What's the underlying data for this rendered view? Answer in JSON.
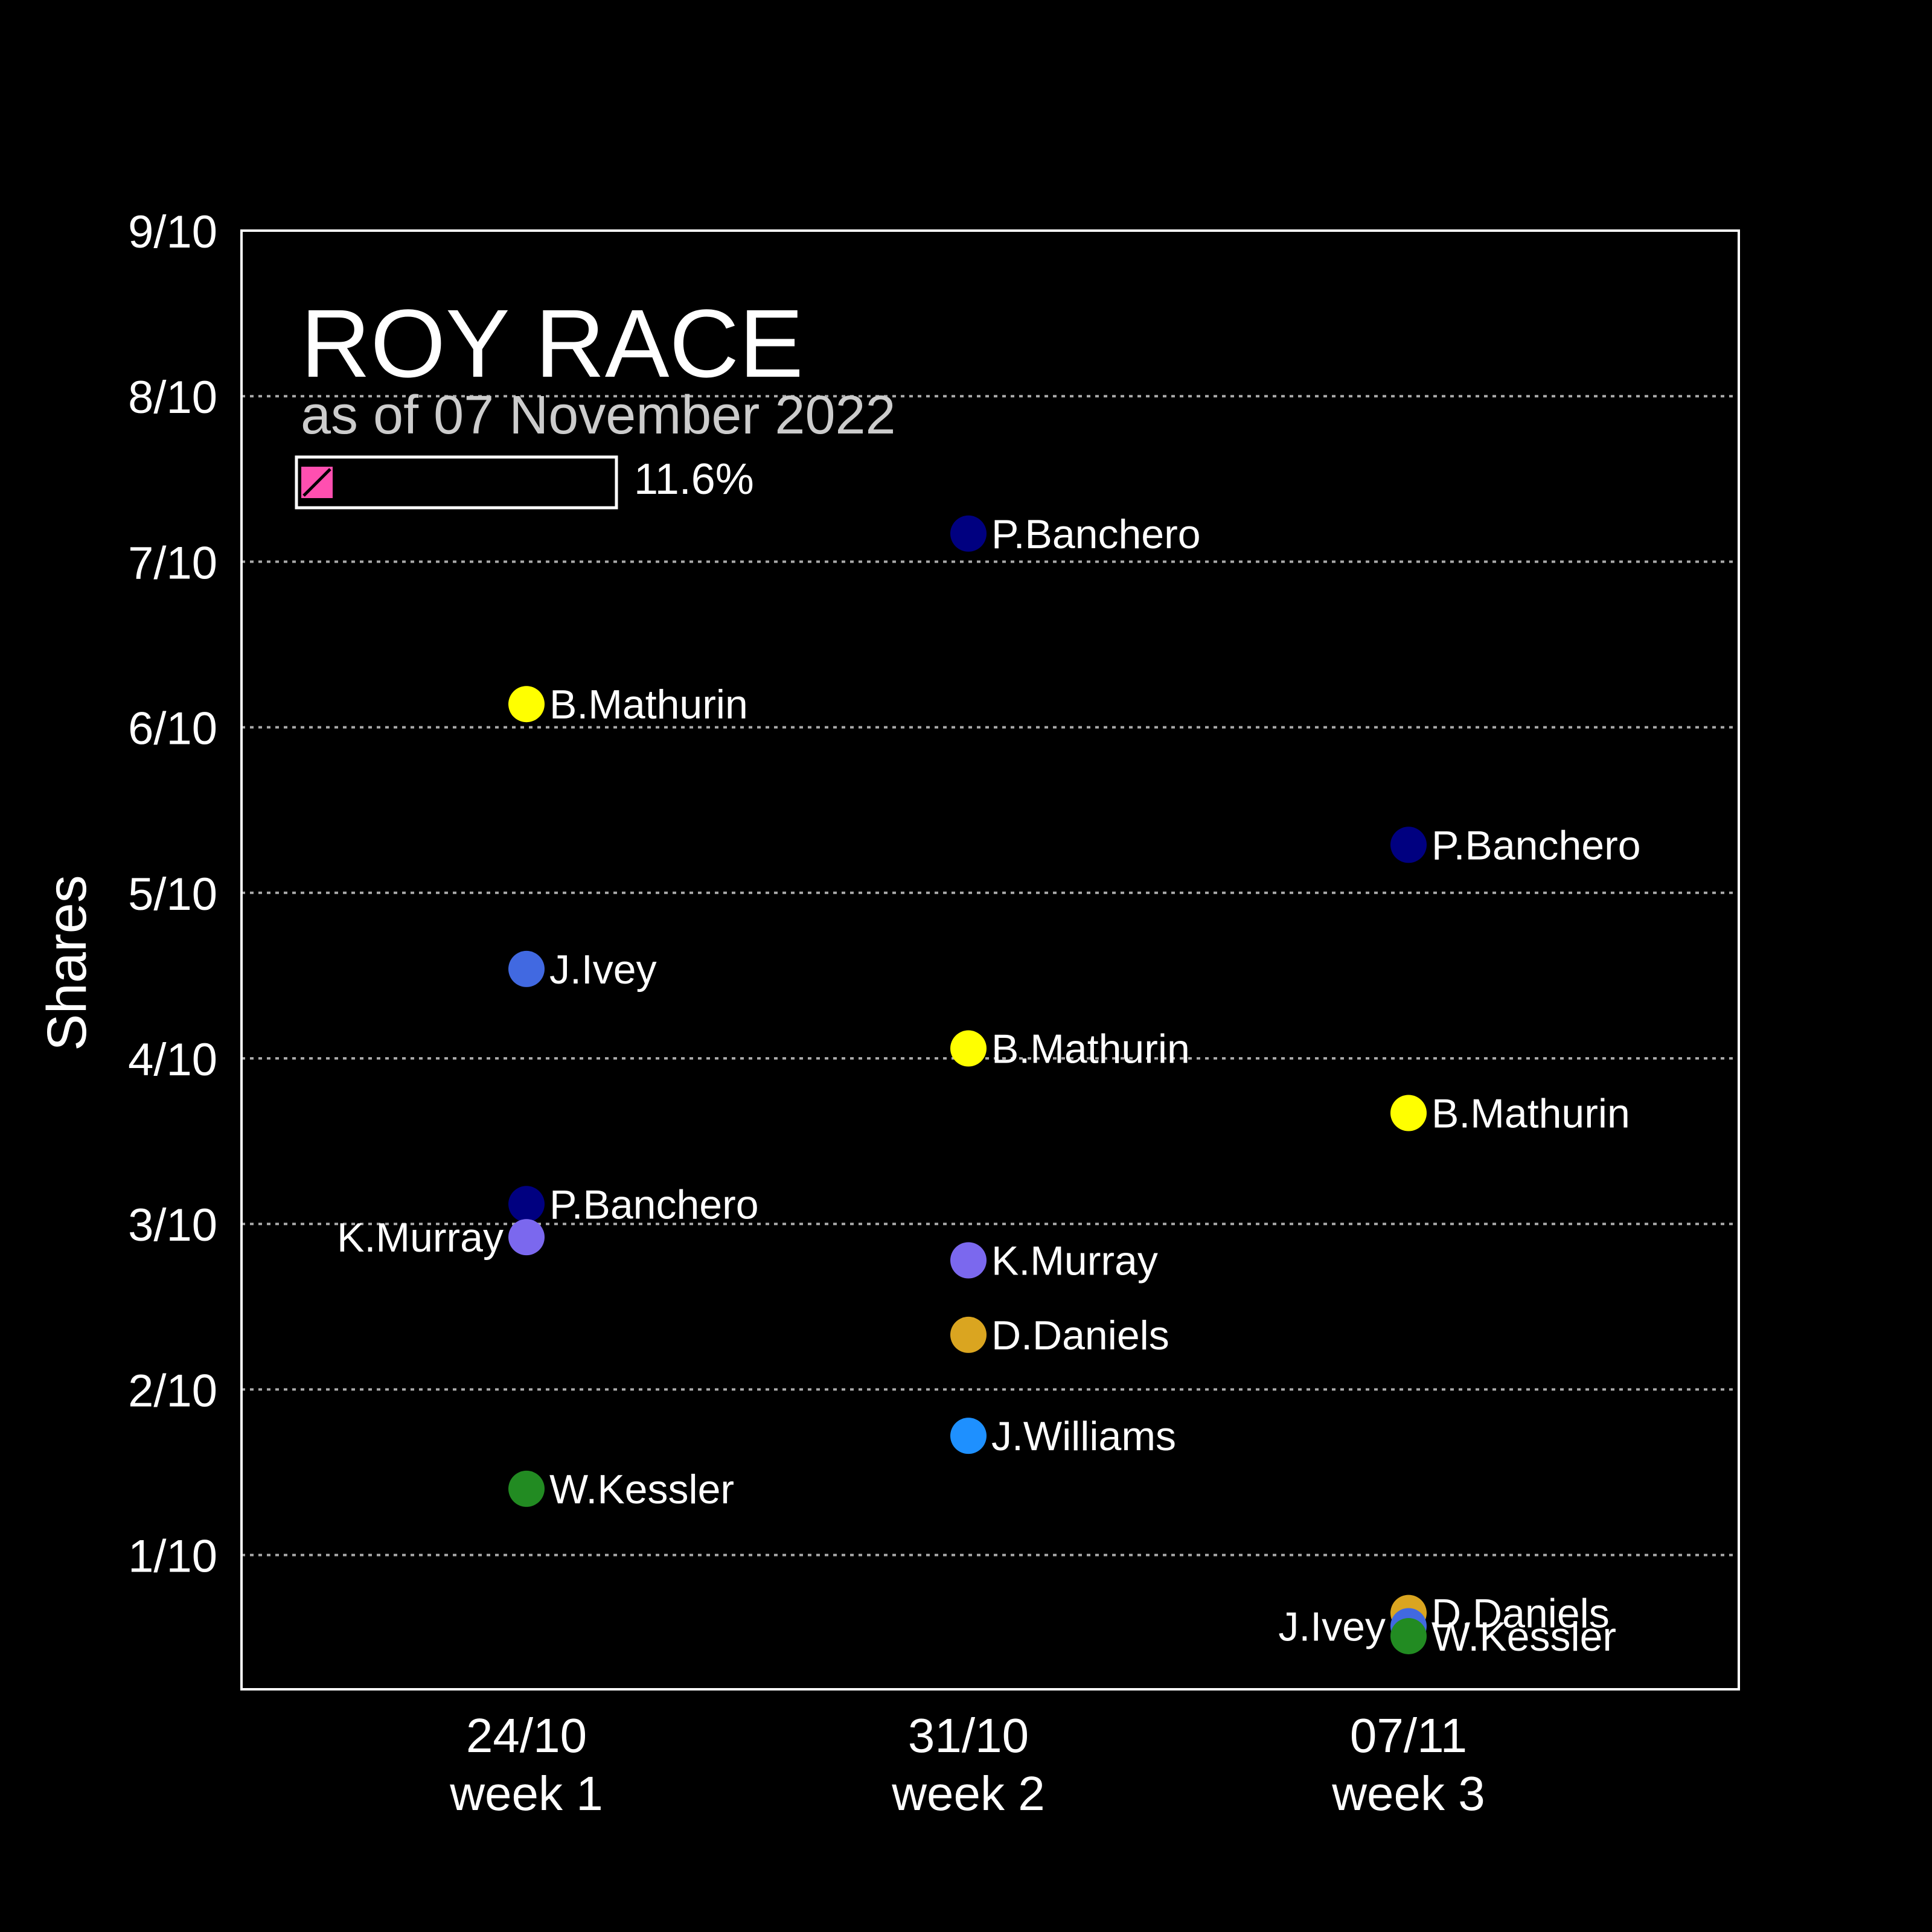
{
  "chart_data": {
    "type": "scatter",
    "title": "ROY RACE",
    "subtitle": "as of 07 November 2022",
    "ylabel": "Shares",
    "xlabel": "",
    "ylim": [
      0,
      0.9
    ],
    "y_ticks": [
      {
        "value": 0.1,
        "label": "1/10"
      },
      {
        "value": 0.2,
        "label": "2/10"
      },
      {
        "value": 0.3,
        "label": "3/10"
      },
      {
        "value": 0.4,
        "label": "4/10"
      },
      {
        "value": 0.5,
        "label": "5/10"
      },
      {
        "value": 0.6,
        "label": "6/10"
      },
      {
        "value": 0.7,
        "label": "7/10"
      },
      {
        "value": 0.8,
        "label": "8/10"
      },
      {
        "value": 0.9,
        "label": "9/10"
      }
    ],
    "grid": true,
    "categories": [
      {
        "date": "24/10",
        "week": "week 1"
      },
      {
        "date": "31/10",
        "week": "week 2"
      },
      {
        "date": "07/11",
        "week": "week 3"
      }
    ],
    "progress": {
      "value": 0.116,
      "label": "11.6%",
      "color": "#ff4fb0"
    },
    "points": [
      {
        "week": 0,
        "name": "B.Mathurin",
        "value": 0.614,
        "color": "#ffff00",
        "label_side": "right"
      },
      {
        "week": 0,
        "name": "J.Ivey",
        "value": 0.454,
        "color": "#4169e1",
        "label_side": "right"
      },
      {
        "week": 0,
        "name": "P.Banchero",
        "value": 0.312,
        "color": "#000080",
        "label_side": "right"
      },
      {
        "week": 0,
        "name": "K.Murray",
        "value": 0.292,
        "color": "#7b68ee",
        "label_side": "left"
      },
      {
        "week": 0,
        "name": "W.Kessler",
        "value": 0.14,
        "color": "#228b22",
        "label_side": "right"
      },
      {
        "week": 1,
        "name": "P.Banchero",
        "value": 0.717,
        "color": "#000080",
        "label_side": "right"
      },
      {
        "week": 1,
        "name": "B.Mathurin",
        "value": 0.406,
        "color": "#ffff00",
        "label_side": "right"
      },
      {
        "week": 1,
        "name": "K.Murray",
        "value": 0.278,
        "color": "#7b68ee",
        "label_side": "right"
      },
      {
        "week": 1,
        "name": "D.Daniels",
        "value": 0.233,
        "color": "#daa520",
        "label_side": "right"
      },
      {
        "week": 1,
        "name": "J.Williams",
        "value": 0.172,
        "color": "#1e90ff",
        "label_side": "right"
      },
      {
        "week": 2,
        "name": "P.Banchero",
        "value": 0.529,
        "color": "#000080",
        "label_side": "right"
      },
      {
        "week": 2,
        "name": "B.Mathurin",
        "value": 0.367,
        "color": "#ffff00",
        "label_side": "right"
      },
      {
        "week": 2,
        "name": "D.Daniels",
        "value": 0.065,
        "color": "#daa520",
        "label_side": "right"
      },
      {
        "week": 2,
        "name": "J.Ivey",
        "value": 0.057,
        "color": "#4169e1",
        "label_side": "left"
      },
      {
        "week": 2,
        "name": "W.Kessler",
        "value": 0.051,
        "color": "#228b22",
        "label_side": "right"
      }
    ]
  }
}
